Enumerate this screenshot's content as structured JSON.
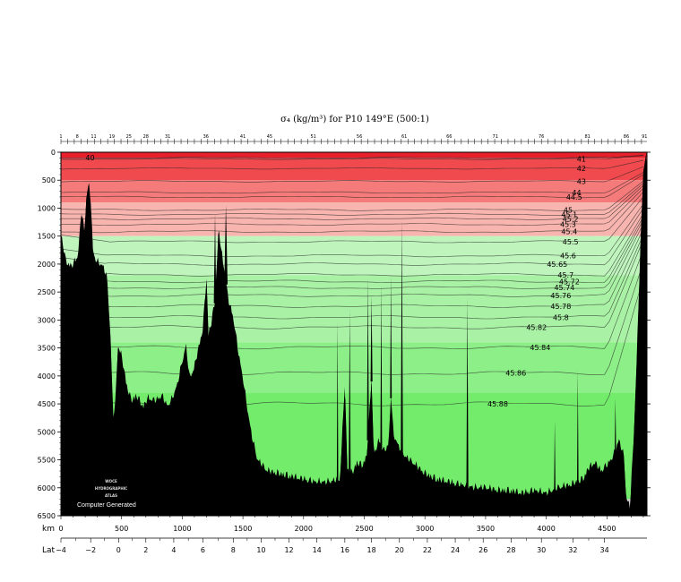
{
  "chart_data": {
    "type": "section-contour",
    "title": "σ₄ (kg/m³) for P10 149°E (500:1)",
    "ylim": [
      0,
      6500
    ],
    "y_ticks": [
      0,
      500,
      1000,
      1500,
      2000,
      2500,
      3000,
      3500,
      4000,
      4500,
      5000,
      5500,
      6000,
      6500
    ],
    "km_label": "km",
    "xlim_km": [
      0,
      4830
    ],
    "km_ticks": [
      0,
      500,
      1000,
      1500,
      2000,
      2500,
      3000,
      3500,
      4000,
      4500
    ],
    "lat_label": "Lat",
    "lat_ticks": [
      {
        "label": "−4",
        "km": 0
      },
      {
        "label": "−2",
        "km": 245
      },
      {
        "label": "0",
        "km": 475
      },
      {
        "label": "2",
        "km": 700
      },
      {
        "label": "4",
        "km": 930
      },
      {
        "label": "6",
        "km": 1170
      },
      {
        "label": "8",
        "km": 1420
      },
      {
        "label": "10",
        "km": 1650
      },
      {
        "label": "12",
        "km": 1880
      },
      {
        "label": "14",
        "km": 2110
      },
      {
        "label": "16",
        "km": 2340
      },
      {
        "label": "18",
        "km": 2560
      },
      {
        "label": "20",
        "km": 2790
      },
      {
        "label": "22",
        "km": 3020
      },
      {
        "label": "24",
        "km": 3250
      },
      {
        "label": "26",
        "km": 3480
      },
      {
        "label": "28",
        "km": 3710
      },
      {
        "label": "30",
        "km": 3960
      },
      {
        "label": "32",
        "km": 4220
      },
      {
        "label": "34",
        "km": 4480
      }
    ],
    "station_labels": [
      {
        "label": "1",
        "km": 0
      },
      {
        "label": "8",
        "km": 135
      },
      {
        "label": "11",
        "km": 270
      },
      {
        "label": "19",
        "km": 420
      },
      {
        "label": "25",
        "km": 560
      },
      {
        "label": "28",
        "km": 700
      },
      {
        "label": "31",
        "km": 880
      },
      {
        "label": "36",
        "km": 1195
      },
      {
        "label": "41",
        "km": 1500
      },
      {
        "label": "45",
        "km": 1720
      },
      {
        "label": "51",
        "km": 2080
      },
      {
        "label": "56",
        "km": 2460
      },
      {
        "label": "61",
        "km": 2830
      },
      {
        "label": "66",
        "km": 3200
      },
      {
        "label": "71",
        "km": 3580
      },
      {
        "label": "76",
        "km": 3960
      },
      {
        "label": "81",
        "km": 4340
      },
      {
        "label": "86",
        "km": 4660
      },
      {
        "label": "91",
        "km": 4810
      }
    ],
    "contour_labels": [
      {
        "label": "40",
        "km": 240,
        "depth": 100
      },
      {
        "label": "41",
        "km": 4290,
        "depth": 120
      },
      {
        "label": "42",
        "km": 4290,
        "depth": 290
      },
      {
        "label": "43",
        "km": 4290,
        "depth": 520
      },
      {
        "label": "44",
        "km": 4250,
        "depth": 720
      },
      {
        "label": "44.5",
        "km": 4230,
        "depth": 800
      },
      {
        "label": "45",
        "km": 4180,
        "depth": 1030
      },
      {
        "label": "45.1",
        "km": 4190,
        "depth": 1110
      },
      {
        "label": "45.2",
        "km": 4200,
        "depth": 1190
      },
      {
        "label": "45.3",
        "km": 4180,
        "depth": 1290
      },
      {
        "label": "45.4",
        "km": 4190,
        "depth": 1420
      },
      {
        "label": "45.5",
        "km": 4200,
        "depth": 1600
      },
      {
        "label": "45.6",
        "km": 4180,
        "depth": 1850
      },
      {
        "label": "45.65",
        "km": 4090,
        "depth": 2000
      },
      {
        "label": "45.7",
        "km": 4160,
        "depth": 2190
      },
      {
        "label": "45.72",
        "km": 4190,
        "depth": 2310
      },
      {
        "label": "45.74",
        "km": 4150,
        "depth": 2420
      },
      {
        "label": "45.76",
        "km": 4120,
        "depth": 2560
      },
      {
        "label": "45.78",
        "km": 4120,
        "depth": 2750
      },
      {
        "label": "45.8",
        "km": 4120,
        "depth": 2950
      },
      {
        "label": "45.82",
        "km": 3920,
        "depth": 3130
      },
      {
        "label": "45.84",
        "km": 3950,
        "depth": 3490
      },
      {
        "label": "45.86",
        "km": 3750,
        "depth": 3950
      },
      {
        "label": "45.88",
        "km": 3600,
        "depth": 4500
      }
    ],
    "bands": [
      {
        "top": 0,
        "bottom": 100,
        "color": "#e8202c"
      },
      {
        "top": 100,
        "bottom": 500,
        "color": "#f04a4e"
      },
      {
        "top": 500,
        "bottom": 900,
        "color": "#f57a7a"
      },
      {
        "top": 900,
        "bottom": 1500,
        "color": "#f8b4ae"
      },
      {
        "top": 1500,
        "bottom": 2200,
        "color": "#bff5bd"
      },
      {
        "top": 2200,
        "bottom": 3400,
        "color": "#a9f2a5"
      },
      {
        "top": 3400,
        "bottom": 4300,
        "color": "#8def87"
      },
      {
        "top": 4300,
        "bottom": 6500,
        "color": "#73ec6c"
      }
    ],
    "bathymetry": [
      [
        0,
        1500
      ],
      [
        40,
        2000
      ],
      [
        90,
        2100
      ],
      [
        140,
        1900
      ],
      [
        170,
        1100
      ],
      [
        195,
        1500
      ],
      [
        210,
        800
      ],
      [
        230,
        650
      ],
      [
        245,
        900
      ],
      [
        265,
        1850
      ],
      [
        290,
        2000
      ],
      [
        320,
        2050
      ],
      [
        350,
        2100
      ],
      [
        380,
        2300
      ],
      [
        410,
        3400
      ],
      [
        430,
        4800
      ],
      [
        450,
        4500
      ],
      [
        470,
        3500
      ],
      [
        500,
        3700
      ],
      [
        540,
        4200
      ],
      [
        580,
        4500
      ],
      [
        620,
        4400
      ],
      [
        680,
        4600
      ],
      [
        720,
        4450
      ],
      [
        780,
        4500
      ],
      [
        830,
        4400
      ],
      [
        880,
        4600
      ],
      [
        920,
        4450
      ],
      [
        960,
        4200
      ],
      [
        1000,
        3800
      ],
      [
        1030,
        3500
      ],
      [
        1060,
        4100
      ],
      [
        1100,
        3900
      ],
      [
        1130,
        3600
      ],
      [
        1170,
        3200
      ],
      [
        1200,
        2300
      ],
      [
        1215,
        3300
      ],
      [
        1240,
        3100
      ],
      [
        1270,
        2700
      ],
      [
        1300,
        1400
      ],
      [
        1320,
        1800
      ],
      [
        1350,
        2200
      ],
      [
        1380,
        2700
      ],
      [
        1420,
        3000
      ],
      [
        1460,
        3600
      ],
      [
        1500,
        4100
      ],
      [
        1540,
        4700
      ],
      [
        1580,
        5200
      ],
      [
        1620,
        5550
      ],
      [
        1700,
        5750
      ],
      [
        1800,
        5800
      ],
      [
        1900,
        5850
      ],
      [
        2000,
        5900
      ],
      [
        2100,
        5950
      ],
      [
        2200,
        5950
      ],
      [
        2300,
        5900
      ],
      [
        2340,
        4200
      ],
      [
        2360,
        5700
      ],
      [
        2400,
        5800
      ],
      [
        2440,
        5600
      ],
      [
        2480,
        5650
      ],
      [
        2520,
        5500
      ],
      [
        2560,
        4100
      ],
      [
        2580,
        5500
      ],
      [
        2620,
        5200
      ],
      [
        2660,
        5400
      ],
      [
        2700,
        5300
      ],
      [
        2720,
        4400
      ],
      [
        2740,
        5100
      ],
      [
        2780,
        5300
      ],
      [
        2840,
        5500
      ],
      [
        2900,
        5600
      ],
      [
        3000,
        5800
      ],
      [
        3100,
        5900
      ],
      [
        3200,
        5950
      ],
      [
        3300,
        6000
      ],
      [
        3400,
        6050
      ],
      [
        3500,
        6050
      ],
      [
        3600,
        6100
      ],
      [
        3700,
        6100
      ],
      [
        3800,
        6150
      ],
      [
        3900,
        6100
      ],
      [
        4000,
        6150
      ],
      [
        4100,
        6050
      ],
      [
        4200,
        6000
      ],
      [
        4300,
        5900
      ],
      [
        4350,
        5700
      ],
      [
        4400,
        5600
      ],
      [
        4450,
        5750
      ],
      [
        4500,
        5650
      ],
      [
        4550,
        5500
      ],
      [
        4600,
        5200
      ],
      [
        4640,
        5500
      ],
      [
        4660,
        6250
      ],
      [
        4690,
        6400
      ],
      [
        4720,
        5200
      ],
      [
        4750,
        3500
      ],
      [
        4780,
        1500
      ],
      [
        4800,
        400
      ],
      [
        4815,
        150
      ],
      [
        4830,
        150
      ]
    ],
    "spikes": [
      {
        "km": 1270,
        "depth": 1100,
        "halfwidth": 10
      },
      {
        "km": 1360,
        "depth": 950,
        "halfwidth": 14
      },
      {
        "km": 2280,
        "depth": 3000,
        "halfwidth": 6
      },
      {
        "km": 2380,
        "depth": 2800,
        "halfwidth": 8
      },
      {
        "km": 2530,
        "depth": 2250,
        "halfwidth": 8
      },
      {
        "km": 2560,
        "depth": 2550,
        "halfwidth": 8
      },
      {
        "km": 2640,
        "depth": 2350,
        "halfwidth": 7
      },
      {
        "km": 2720,
        "depth": 2200,
        "halfwidth": 7
      },
      {
        "km": 2810,
        "depth": 1200,
        "halfwidth": 9
      },
      {
        "km": 3350,
        "depth": 2600,
        "halfwidth": 8
      },
      {
        "km": 4070,
        "depth": 4800,
        "halfwidth": 6
      },
      {
        "km": 4260,
        "depth": 3900,
        "halfwidth": 6
      },
      {
        "km": 4570,
        "depth": 4400,
        "halfwidth": 6
      }
    ],
    "watermark_lines": [
      "WOCE",
      "HYDROGRAPHIC",
      "ATLAS"
    ],
    "watermark_caption": "Computer Generated",
    "colors": {
      "land": "#000000",
      "gap": "#cfcfcf"
    }
  }
}
